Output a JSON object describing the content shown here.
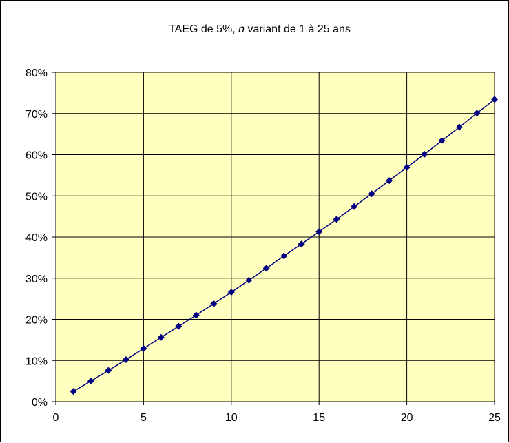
{
  "chart_data": {
    "type": "line",
    "title_parts": [
      "TAEG de 5%, ",
      "n",
      " variant de 1 à 25 ans"
    ],
    "xlabel": "",
    "ylabel": "",
    "xlim": [
      0,
      25
    ],
    "ylim": [
      0,
      0.8
    ],
    "x_ticks": [
      0,
      5,
      10,
      15,
      20,
      25
    ],
    "x_tick_labels": [
      "0",
      "5",
      "10",
      "15",
      "20",
      "25"
    ],
    "y_ticks": [
      0,
      0.1,
      0.2,
      0.3,
      0.4,
      0.5,
      0.6,
      0.7,
      0.8
    ],
    "y_tick_labels": [
      "0%",
      "10%",
      "20%",
      "30%",
      "40%",
      "50%",
      "60%",
      "70%",
      "80%"
    ],
    "grid": true,
    "legend": "none",
    "colors": {
      "plot_background": "#FFFFC0",
      "series_line": "#000080",
      "marker": "#000080",
      "gridline": "#000000"
    },
    "series": [
      {
        "marker": "diamond",
        "x": [
          1,
          2,
          3,
          4,
          5,
          6,
          7,
          8,
          9,
          10,
          11,
          12,
          13,
          14,
          15,
          16,
          17,
          18,
          19,
          20,
          21,
          22,
          23,
          24,
          25
        ],
        "y": [
          0.025,
          0.05,
          0.076,
          0.102,
          0.129,
          0.156,
          0.183,
          0.21,
          0.238,
          0.266,
          0.295,
          0.324,
          0.354,
          0.383,
          0.413,
          0.443,
          0.474,
          0.505,
          0.537,
          0.569,
          0.601,
          0.634,
          0.667,
          0.701,
          0.734
        ]
      }
    ]
  }
}
